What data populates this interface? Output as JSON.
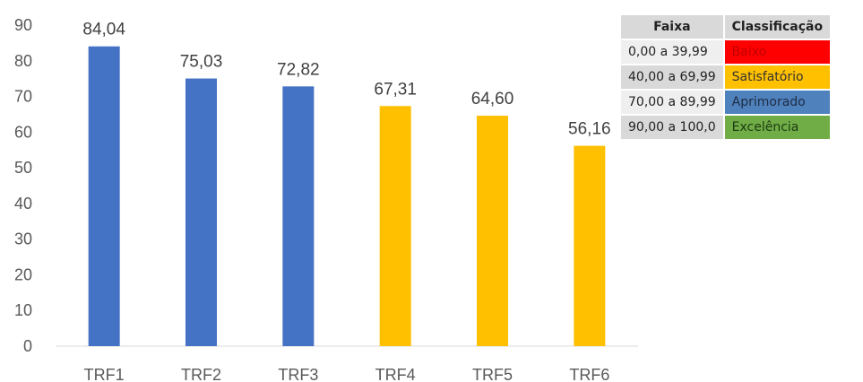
{
  "chart_data": {
    "type": "bar",
    "categories": [
      "TRF1",
      "TRF2",
      "TRF3",
      "TRF4",
      "TRF5",
      "TRF6"
    ],
    "values": [
      84.04,
      75.03,
      72.82,
      67.31,
      64.6,
      56.16
    ],
    "data_labels": [
      "84,04",
      "75,03",
      "72,82",
      "67,31",
      "64,60",
      "56,16"
    ],
    "bar_colors": [
      "#4472c4",
      "#4472c4",
      "#4472c4",
      "#ffc000",
      "#ffc000",
      "#ffc000"
    ],
    "ylim": [
      0,
      90
    ],
    "yticks": [
      0,
      10,
      20,
      30,
      40,
      50,
      60,
      70,
      80,
      90
    ],
    "grid": false,
    "title": "",
    "xlabel": "",
    "ylabel": ""
  },
  "legend_table": {
    "headers": [
      "Faixa",
      "Classificação"
    ],
    "rows": [
      {
        "range": "0,00 a 39,99",
        "label": "Baixo",
        "color": "#ff0000",
        "text_color": "#c00000"
      },
      {
        "range": "40,00 a 69,99",
        "label": "Satisfatório",
        "color": "#ffc000",
        "text_color": "#333333"
      },
      {
        "range": "70,00 a 89,99",
        "label": "Aprimorado",
        "color": "#4f81bd",
        "text_color": "#1f2d44"
      },
      {
        "range": "90,00 a 100,0",
        "label": "Excelência",
        "color": "#70ad47",
        "text_color": "#1d3b10"
      }
    ]
  }
}
